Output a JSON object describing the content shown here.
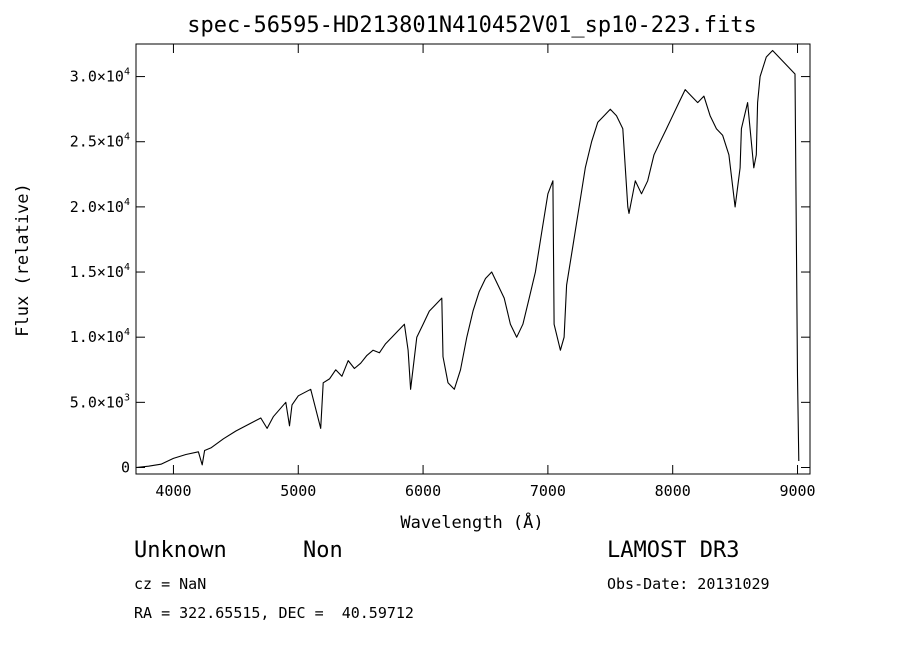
{
  "chart_data": {
    "type": "line",
    "title": "spec-56595-HD213801N410452V01_sp10-223.fits",
    "xlabel": "Wavelength (Å)",
    "ylabel": "Flux (relative)",
    "xlim": [
      3700,
      9100
    ],
    "ylim": [
      -500,
      32500
    ],
    "x_ticks": [
      4000,
      5000,
      6000,
      7000,
      8000,
      9000
    ],
    "y_ticks": [
      {
        "value": 0,
        "mantissa": "0",
        "exponent": ""
      },
      {
        "value": 5000,
        "mantissa": "5.0×10",
        "exponent": "3"
      },
      {
        "value": 10000,
        "mantissa": "1.0×10",
        "exponent": "4"
      },
      {
        "value": 15000,
        "mantissa": "1.5×10",
        "exponent": "4"
      },
      {
        "value": 20000,
        "mantissa": "2.0×10",
        "exponent": "4"
      },
      {
        "value": 25000,
        "mantissa": "2.5×10",
        "exponent": "4"
      },
      {
        "value": 30000,
        "mantissa": "3.0×10",
        "exponent": "4"
      }
    ],
    "series": [
      {
        "x": [
          3700,
          3800,
          3900,
          4000,
          4100,
          4200,
          4230,
          4250,
          4300,
          4400,
          4500,
          4600,
          4700,
          4750,
          4800,
          4900,
          4930,
          4950,
          5000,
          5100,
          5180,
          5200,
          5250,
          5300,
          5350,
          5400,
          5450,
          5500,
          5550,
          5600,
          5650,
          5700,
          5750,
          5800,
          5850,
          5880,
          5900,
          5950,
          6000,
          6050,
          6100,
          6150,
          6160,
          6200,
          6250,
          6300,
          6350,
          6400,
          6450,
          6500,
          6550,
          6600,
          6650,
          6700,
          6750,
          6800,
          6850,
          6900,
          6950,
          7000,
          7040,
          7050,
          7100,
          7130,
          7150,
          7200,
          7250,
          7300,
          7350,
          7400,
          7450,
          7500,
          7550,
          7600,
          7640,
          7650,
          7680,
          7700,
          7750,
          7800,
          7850,
          7900,
          7950,
          8000,
          8050,
          8100,
          8150,
          8200,
          8250,
          8300,
          8350,
          8400,
          8450,
          8500,
          8540,
          8550,
          8600,
          8650,
          8670,
          8680,
          8700,
          8750,
          8800,
          8850,
          8900,
          8950,
          8980,
          9000,
          9010
        ],
        "y": [
          0,
          100,
          250,
          700,
          1000,
          1200,
          200,
          1300,
          1500,
          2200,
          2800,
          3300,
          3800,
          3000,
          3900,
          5000,
          3200,
          4800,
          5500,
          6000,
          3000,
          6500,
          6800,
          7500,
          7000,
          8200,
          7600,
          8000,
          8600,
          9000,
          8800,
          9500,
          10000,
          10500,
          11000,
          9000,
          6000,
          10000,
          11000,
          12000,
          12500,
          13000,
          8500,
          6500,
          6000,
          7500,
          10000,
          12000,
          13500,
          14500,
          15000,
          14000,
          13000,
          11000,
          10000,
          11000,
          13000,
          15000,
          18000,
          21000,
          22000,
          11000,
          9000,
          10000,
          14000,
          17000,
          20000,
          23000,
          25000,
          26500,
          27000,
          27500,
          27000,
          26000,
          20000,
          19500,
          21000,
          22000,
          21000,
          22000,
          24000,
          25000,
          26000,
          27000,
          28000,
          29000,
          28500,
          28000,
          28500,
          27000,
          26000,
          25500,
          24000,
          20000,
          23000,
          26000,
          28000,
          23000,
          24000,
          28000,
          30000,
          31500,
          32000,
          31500,
          31000,
          30500,
          30200,
          7000,
          500
        ]
      }
    ]
  },
  "info": {
    "object_class": "Unknown",
    "object_subclass": "Non",
    "survey": "LAMOST DR3",
    "cz": "cz = NaN",
    "obs_date": "Obs-Date: 20131029",
    "coords": "RA = 322.65515, DEC =  40.59712"
  }
}
